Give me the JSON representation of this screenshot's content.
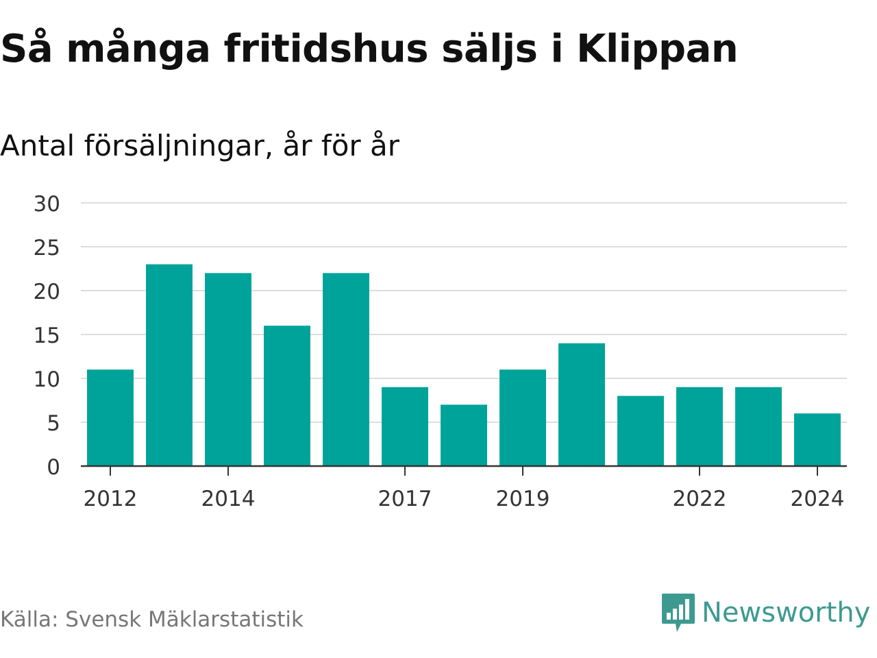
{
  "header": {
    "title": "Så många fritidshus säljs i Klippan",
    "subtitle": "Antal försäljningar, år för år"
  },
  "chart_data": {
    "type": "bar",
    "title": "Så många fritidshus säljs i Klippan",
    "subtitle": "Antal försäljningar, år för år",
    "xlabel": "",
    "ylabel": "",
    "categories": [
      "2012",
      "2013",
      "2014",
      "2015",
      "2016",
      "2017",
      "2018",
      "2019",
      "2020",
      "2021",
      "2022",
      "2023",
      "2024"
    ],
    "x_tick_labels": [
      "2012",
      "2014",
      "2017",
      "2019",
      "2022",
      "2024"
    ],
    "values": [
      11,
      23,
      22,
      16,
      22,
      9,
      7,
      11,
      14,
      8,
      9,
      9,
      6
    ],
    "ylim": [
      0,
      30
    ],
    "y_ticks": [
      0,
      5,
      10,
      15,
      20,
      25,
      30
    ],
    "grid": true,
    "legend": "none",
    "bar_color": "#00a39a"
  },
  "footer": {
    "source": "Källa: Svensk Mäklarstatistik",
    "brand": "Newsworthy",
    "brand_icon": "bar-chart-speech-bubble-icon",
    "brand_color": "#3d9a91"
  }
}
